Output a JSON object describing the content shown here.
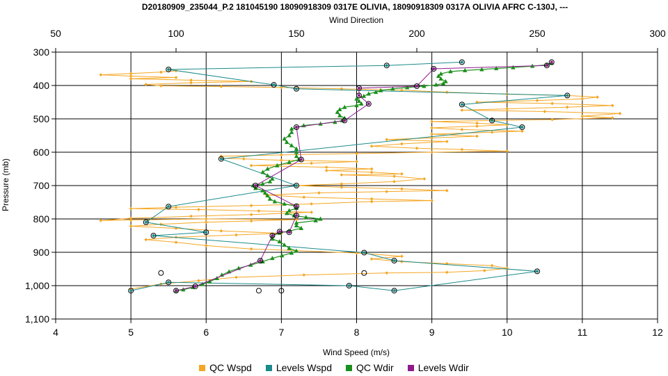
{
  "chart_data": {
    "type": "scatter",
    "title": "D20180909_235044_P.2 181045190 18090918309 0317E OLIVIA, 18090918309 0317A OLIVIA AFRC C-130J, ---",
    "top_axis_label": "Wind Direction",
    "xlabel": "Wind Speed (m/s)",
    "ylabel": "Pressure (mb)",
    "top_axis_range": [
      50,
      300
    ],
    "top_axis_ticks": [
      "50",
      "100",
      "150",
      "200",
      "250",
      "300"
    ],
    "x_range": [
      4,
      12
    ],
    "x_ticks": [
      "4",
      "5",
      "6",
      "7",
      "8",
      "9",
      "10",
      "11",
      "12"
    ],
    "y_range": [
      300,
      1100
    ],
    "y_reversed": true,
    "y_ticks": [
      "300",
      "400",
      "500",
      "600",
      "700",
      "800",
      "900",
      "1,000",
      "1,100"
    ],
    "grid": true,
    "legend_position": "bottom",
    "series": [
      {
        "name": "QC Wspd",
        "color": "#f5a623",
        "axis": "bottom",
        "points": [
          [
            5.0,
            1010
          ],
          [
            5.4,
            995
          ],
          [
            5.9,
            985
          ],
          [
            6.4,
            975
          ],
          [
            7.3,
            968
          ],
          [
            8.4,
            962
          ],
          [
            9.2,
            960
          ],
          [
            9.7,
            955
          ],
          [
            10.0,
            948
          ],
          [
            9.8,
            940
          ],
          [
            9.2,
            934
          ],
          [
            8.6,
            928
          ],
          [
            8.2,
            920
          ],
          [
            8.6,
            912
          ],
          [
            8.0,
            902
          ],
          [
            7.2,
            895
          ],
          [
            6.6,
            890
          ],
          [
            6.0,
            880
          ],
          [
            5.6,
            870
          ],
          [
            5.2,
            862
          ],
          [
            5.6,
            855
          ],
          [
            6.4,
            848
          ],
          [
            7.0,
            843
          ],
          [
            6.2,
            836
          ],
          [
            5.6,
            828
          ],
          [
            5.0,
            822
          ],
          [
            5.4,
            816
          ],
          [
            6.0,
            810
          ],
          [
            6.6,
            806
          ],
          [
            7.2,
            802
          ],
          [
            6.0,
            800
          ],
          [
            5.0,
            803
          ],
          [
            4.6,
            805
          ],
          [
            5.0,
            798
          ],
          [
            5.8,
            792
          ],
          [
            6.6,
            787
          ],
          [
            7.4,
            780
          ],
          [
            6.7,
            776
          ],
          [
            5.9,
            772
          ],
          [
            5.0,
            769
          ],
          [
            5.6,
            765
          ],
          [
            6.6,
            760
          ],
          [
            7.4,
            755
          ],
          [
            8.2,
            748
          ],
          [
            9.0,
            745
          ],
          [
            8.2,
            740
          ],
          [
            7.3,
            735
          ],
          [
            6.8,
            728
          ],
          [
            7.5,
            722
          ],
          [
            8.4,
            718
          ],
          [
            9.2,
            715
          ],
          [
            8.6,
            710
          ],
          [
            7.8,
            705
          ],
          [
            7.2,
            700
          ],
          [
            7.8,
            695
          ],
          [
            8.5,
            688
          ],
          [
            8.9,
            680
          ],
          [
            8.5,
            672
          ],
          [
            7.8,
            668
          ],
          [
            8.6,
            665
          ],
          [
            8.2,
            660
          ],
          [
            7.6,
            655
          ],
          [
            8.2,
            650
          ],
          [
            7.6,
            645
          ],
          [
            6.6,
            640
          ],
          [
            7.4,
            633
          ],
          [
            8.0,
            628
          ],
          [
            7.0,
            624
          ],
          [
            6.5,
            620
          ],
          [
            6.2,
            618
          ],
          [
            6.2,
            612
          ],
          [
            7.0,
            608
          ],
          [
            8.0,
            604
          ],
          [
            9.0,
            600
          ],
          [
            10.0,
            597
          ],
          [
            9.4,
            592
          ],
          [
            8.8,
            588
          ],
          [
            8.2,
            582
          ],
          [
            8.6,
            575
          ],
          [
            9.2,
            568
          ],
          [
            8.4,
            562
          ],
          [
            9.0,
            557
          ],
          [
            9.6,
            552
          ],
          [
            9.0,
            546
          ],
          [
            9.8,
            540
          ],
          [
            10.2,
            537
          ],
          [
            9.4,
            532
          ],
          [
            9.0,
            527
          ],
          [
            9.6,
            522
          ],
          [
            10.0,
            518
          ],
          [
            9.6,
            513
          ],
          [
            9.0,
            508
          ],
          [
            9.8,
            505
          ],
          [
            10.6,
            502
          ],
          [
            11.4,
            497
          ],
          [
            11.0,
            492
          ],
          [
            11.5,
            484
          ],
          [
            10.5,
            478
          ],
          [
            9.4,
            474
          ],
          [
            10.0,
            470
          ],
          [
            10.8,
            465
          ],
          [
            11.4,
            460
          ],
          [
            10.6,
            454
          ],
          [
            9.6,
            450
          ],
          [
            10.4,
            445
          ],
          [
            11.0,
            440
          ],
          [
            11.2,
            435
          ],
          [
            10.8,
            430
          ],
          [
            10.0,
            426
          ],
          [
            9.2,
            420
          ],
          [
            8.6,
            414
          ],
          [
            7.8,
            410
          ],
          [
            7.0,
            406
          ],
          [
            6.2,
            403
          ],
          [
            5.4,
            401
          ],
          [
            5.2,
            397
          ],
          [
            5.8,
            392
          ],
          [
            6.6,
            388
          ],
          [
            5.8,
            384
          ],
          [
            5.0,
            380
          ],
          [
            5.6,
            376
          ],
          [
            5.0,
            372
          ],
          [
            4.6,
            368
          ],
          [
            5.0,
            364
          ],
          [
            5.4,
            360
          ],
          [
            5.6,
            356
          ]
        ]
      },
      {
        "name": "Levels Wspd",
        "color": "#1b8a8a",
        "axis": "bottom",
        "points": [
          [
            5.0,
            1015
          ],
          [
            5.5,
            990
          ],
          [
            7.9,
            1000
          ],
          [
            8.5,
            1015
          ],
          [
            10.4,
            957
          ],
          [
            8.5,
            925
          ],
          [
            8.1,
            901
          ],
          [
            5.3,
            850
          ],
          [
            6.0,
            840
          ],
          [
            5.2,
            810
          ],
          [
            5.5,
            763
          ],
          [
            7.2,
            700
          ],
          [
            6.2,
            620
          ],
          [
            10.2,
            525
          ],
          [
            9.8,
            505
          ],
          [
            9.4,
            457
          ],
          [
            10.8,
            430
          ],
          [
            7.2,
            410
          ],
          [
            6.9,
            398
          ],
          [
            5.5,
            352
          ],
          [
            8.4,
            340
          ],
          [
            9.4,
            330
          ]
        ]
      },
      {
        "name": "QC Wdir",
        "color": "#1a8f1a",
        "axis": "top",
        "points": [
          [
            100,
            1015
          ],
          [
            103,
            1012
          ],
          [
            107,
            1005
          ],
          [
            111,
            996
          ],
          [
            114,
            988
          ],
          [
            117,
            978
          ],
          [
            119,
            968
          ],
          [
            122,
            958
          ],
          [
            126,
            948
          ],
          [
            131,
            938
          ],
          [
            136,
            928
          ],
          [
            140,
            918
          ],
          [
            144,
            910
          ],
          [
            148,
            902
          ],
          [
            150,
            896
          ],
          [
            147,
            888
          ],
          [
            145,
            878
          ],
          [
            143,
            868
          ],
          [
            140,
            860
          ],
          [
            140,
            850
          ],
          [
            143,
            842
          ],
          [
            147,
            836
          ],
          [
            152,
            828
          ],
          [
            150,
            820
          ],
          [
            150,
            812
          ],
          [
            158,
            805
          ],
          [
            160,
            800
          ],
          [
            154,
            795
          ],
          [
            149,
            790
          ],
          [
            146,
            783
          ],
          [
            147,
            775
          ],
          [
            150,
            768
          ],
          [
            150,
            762
          ],
          [
            145,
            755
          ],
          [
            141,
            748
          ],
          [
            139,
            740
          ],
          [
            138,
            730
          ],
          [
            137,
            722
          ],
          [
            136,
            715
          ],
          [
            133,
            708
          ],
          [
            132,
            700
          ],
          [
            136,
            695
          ],
          [
            139,
            688
          ],
          [
            140,
            680
          ],
          [
            138,
            670
          ],
          [
            136,
            660
          ],
          [
            138,
            650
          ],
          [
            142,
            640
          ],
          [
            147,
            630
          ],
          [
            151,
            622
          ],
          [
            150,
            612
          ],
          [
            150,
            600
          ],
          [
            150,
            590
          ],
          [
            148,
            580
          ],
          [
            146,
            570
          ],
          [
            145,
            560
          ],
          [
            147,
            550
          ],
          [
            148,
            540
          ],
          [
            148,
            530
          ],
          [
            153,
            520
          ],
          [
            160,
            515
          ],
          [
            166,
            510
          ],
          [
            169,
            505
          ],
          [
            170,
            498
          ],
          [
            168,
            490
          ],
          [
            167,
            480
          ],
          [
            168,
            472
          ],
          [
            170,
            465
          ],
          [
            175,
            460
          ],
          [
            177,
            455
          ],
          [
            176,
            447
          ],
          [
            175,
            440
          ],
          [
            178,
            432
          ],
          [
            180,
            425
          ],
          [
            183,
            420
          ],
          [
            185,
            415
          ],
          [
            190,
            410
          ],
          [
            196,
            406
          ],
          [
            203,
            402
          ],
          [
            208,
            398
          ],
          [
            211,
            394
          ],
          [
            212,
            388
          ],
          [
            210,
            380
          ],
          [
            209,
            372
          ],
          [
            210,
            365
          ],
          [
            214,
            358
          ],
          [
            220,
            355
          ],
          [
            227,
            352
          ],
          [
            233,
            349
          ],
          [
            240,
            346
          ],
          [
            248,
            342
          ],
          [
            254,
            338
          ],
          [
            256,
            333
          ]
        ]
      },
      {
        "name": "Levels Wdir",
        "color": "#8e1a8e",
        "axis": "top",
        "points": [
          [
            100,
            1015
          ],
          [
            108,
            1002
          ],
          [
            135,
            925
          ],
          [
            140,
            850
          ],
          [
            143,
            838
          ],
          [
            147,
            840
          ],
          [
            150,
            790
          ],
          [
            150,
            762
          ],
          [
            133,
            700
          ],
          [
            152,
            622
          ],
          [
            150,
            525
          ],
          [
            170,
            505
          ],
          [
            180,
            455
          ],
          [
            176,
            430
          ],
          [
            176,
            408
          ],
          [
            200,
            402
          ],
          [
            207,
            350
          ],
          [
            254,
            340
          ],
          [
            256,
            330
          ]
        ]
      },
      {
        "name": "",
        "color": "#000000",
        "axis": "bottom",
        "marker": "open-circle",
        "points": [
          [
            5.4,
            962
          ],
          [
            6.7,
            1015
          ],
          [
            7.0,
            1015
          ],
          [
            8.1,
            962
          ]
        ]
      }
    ]
  }
}
